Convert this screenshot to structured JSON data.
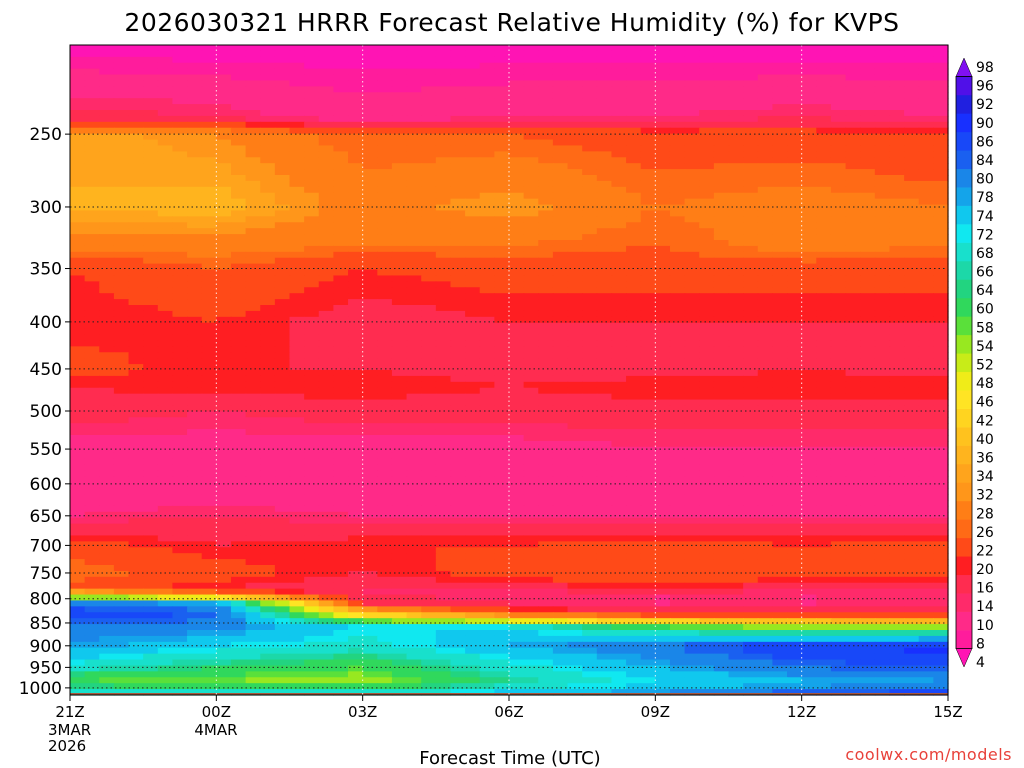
{
  "chart_data": {
    "type": "heatmap",
    "title": "2026030321 HRRR Forecast Relative Humidity (%) for KVPS",
    "xlabel": "Forecast Time (UTC)",
    "ylabel": "",
    "credit": "coolwx.com/models",
    "x_ticks": [
      {
        "label": "21Z",
        "sub": [
          "3MAR",
          "2026"
        ],
        "hour": 0
      },
      {
        "label": "00Z",
        "sub": [
          "4MAR"
        ],
        "hour": 3
      },
      {
        "label": "03Z",
        "sub": [],
        "hour": 6
      },
      {
        "label": "06Z",
        "sub": [],
        "hour": 9
      },
      {
        "label": "09Z",
        "sub": [],
        "hour": 12
      },
      {
        "label": "12Z",
        "sub": [],
        "hour": 15
      },
      {
        "label": "15Z",
        "sub": [],
        "hour": 18
      }
    ],
    "xlim_hours": [
      0,
      18
    ],
    "y_ticks": [
      250,
      300,
      350,
      400,
      450,
      500,
      550,
      600,
      650,
      700,
      750,
      800,
      850,
      900,
      950,
      1000
    ],
    "ylim_hPa": [
      200,
      1018
    ],
    "ground_hPa": 1013,
    "colorbar": {
      "levels": [
        4,
        8,
        10,
        14,
        16,
        20,
        22,
        26,
        28,
        32,
        34,
        36,
        40,
        42,
        46,
        48,
        52,
        54,
        58,
        60,
        64,
        66,
        68,
        72,
        74,
        78,
        80,
        84,
        86,
        90,
        92,
        96,
        98
      ],
      "tick_labels": [
        "98",
        "96",
        "92",
        "90",
        "86",
        "84",
        "80",
        "78",
        "74",
        "72",
        "68",
        "66",
        "64",
        "60",
        "58",
        "54",
        "52",
        "48",
        "46",
        "42",
        "40",
        "36",
        "34",
        "32",
        "28",
        "26",
        "22",
        "20",
        "16",
        "14",
        "10",
        "8",
        "4"
      ],
      "colors": [
        "#ff14b4",
        "#ff1c9c",
        "#ff2a88",
        "#ff2a6a",
        "#ff2c50",
        "#ff1e22",
        "#ff4a18",
        "#ff6a16",
        "#ff7e16",
        "#ff961a",
        "#ffa41c",
        "#ffb41e",
        "#ffc21e",
        "#ffd420",
        "#ffe424",
        "#f0ec18",
        "#c8ec18",
        "#98e820",
        "#5ae03a",
        "#30d85c",
        "#22d480",
        "#1cd8a8",
        "#18e0cc",
        "#10e8f0",
        "#10c8ee",
        "#14a4ea",
        "#1a86e8",
        "#1a60f0",
        "#1848f8",
        "#1830ff",
        "#2020e0",
        "#5010e8",
        "#8010f0"
      ]
    },
    "profile_hPa": [
      200,
      240,
      250,
      300,
      330,
      350,
      400,
      450,
      470,
      500,
      550,
      600,
      650,
      700,
      750,
      780,
      790,
      810,
      830,
      860,
      900,
      950,
      980,
      1000,
      1013
    ],
    "time_hours": [
      0,
      3,
      6,
      9,
      12,
      15,
      18
    ],
    "rh_percent": [
      [
        6,
        18,
        36,
        36,
        30,
        22,
        20,
        24,
        20,
        18,
        12,
        10,
        14,
        24,
        28,
        24,
        42,
        84,
        88,
        82,
        80,
        70,
        60,
        66,
        70
      ],
      [
        6,
        16,
        32,
        38,
        30,
        26,
        22,
        20,
        22,
        16,
        12,
        10,
        16,
        20,
        24,
        20,
        30,
        80,
        86,
        82,
        74,
        64,
        58,
        64,
        72
      ],
      [
        6,
        12,
        26,
        30,
        28,
        22,
        18,
        20,
        22,
        18,
        12,
        10,
        14,
        22,
        20,
        16,
        16,
        20,
        42,
        74,
        70,
        60,
        56,
        62,
        70
      ],
      [
        6,
        14,
        26,
        34,
        28,
        24,
        20,
        18,
        20,
        18,
        12,
        10,
        14,
        22,
        24,
        18,
        14,
        16,
        26,
        74,
        78,
        70,
        66,
        70,
        76
      ],
      [
        6,
        14,
        24,
        28,
        26,
        24,
        20,
        18,
        22,
        18,
        14,
        10,
        14,
        24,
        26,
        20,
        14,
        14,
        20,
        62,
        84,
        78,
        74,
        76,
        80
      ],
      [
        6,
        16,
        24,
        30,
        30,
        24,
        20,
        20,
        22,
        18,
        14,
        10,
        14,
        22,
        24,
        18,
        14,
        14,
        20,
        58,
        90,
        84,
        78,
        80,
        86
      ],
      [
        6,
        14,
        22,
        28,
        28,
        24,
        20,
        18,
        22,
        18,
        14,
        10,
        14,
        24,
        24,
        18,
        14,
        14,
        18,
        56,
        92,
        86,
        80,
        82,
        88
      ]
    ]
  }
}
